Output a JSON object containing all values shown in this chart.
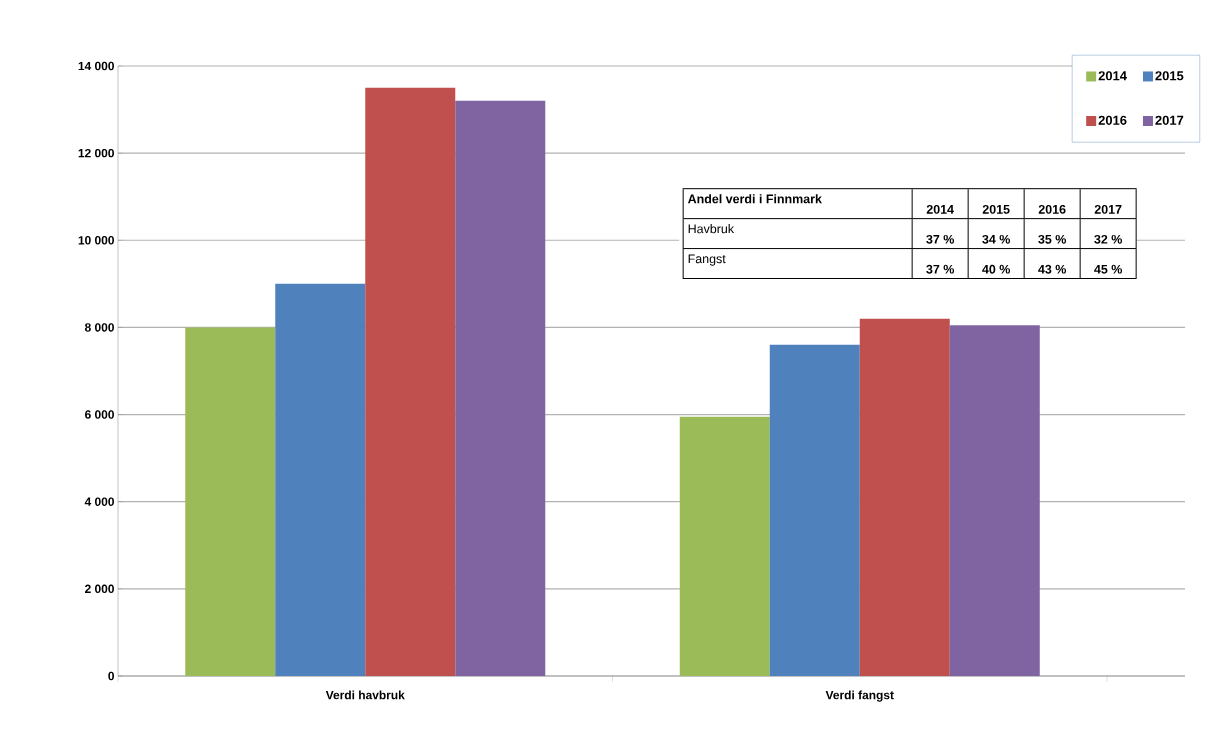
{
  "chart_data": {
    "type": "bar",
    "categories": [
      "Verdi havbruk",
      "Verdi fangst"
    ],
    "series": [
      {
        "name": "2014",
        "color": "#9bbb59",
        "values": [
          8000,
          5950
        ]
      },
      {
        "name": "2015",
        "color": "#4f81bd",
        "values": [
          9000,
          7600
        ]
      },
      {
        "name": "2016",
        "color": "#c0504d",
        "values": [
          13500,
          8200
        ]
      },
      {
        "name": "2017",
        "color": "#8064a2",
        "values": [
          13200,
          8050
        ]
      }
    ],
    "ylim": [
      0,
      14000
    ],
    "yticks": [
      {
        "value": 0,
        "label": "0"
      },
      {
        "value": 2000,
        "label": "2 000"
      },
      {
        "value": 4000,
        "label": "4 000"
      },
      {
        "value": 6000,
        "label": "6 000"
      },
      {
        "value": 8000,
        "label": "8 000"
      },
      {
        "value": 10000,
        "label": "10 000"
      },
      {
        "value": 12000,
        "label": "12 000"
      },
      {
        "value": 14000,
        "label": "14 000"
      }
    ],
    "grid": "y",
    "legend": "top right",
    "annotations": [
      "Andel verdi i Finnmark",
      "2014",
      "2015",
      "2016",
      "2017",
      "Havbruk",
      "37 %",
      "34 %",
      "35 %",
      "32 %",
      "Fangst",
      "37 %",
      "40 %",
      "43 %",
      "45 %"
    ]
  }
}
